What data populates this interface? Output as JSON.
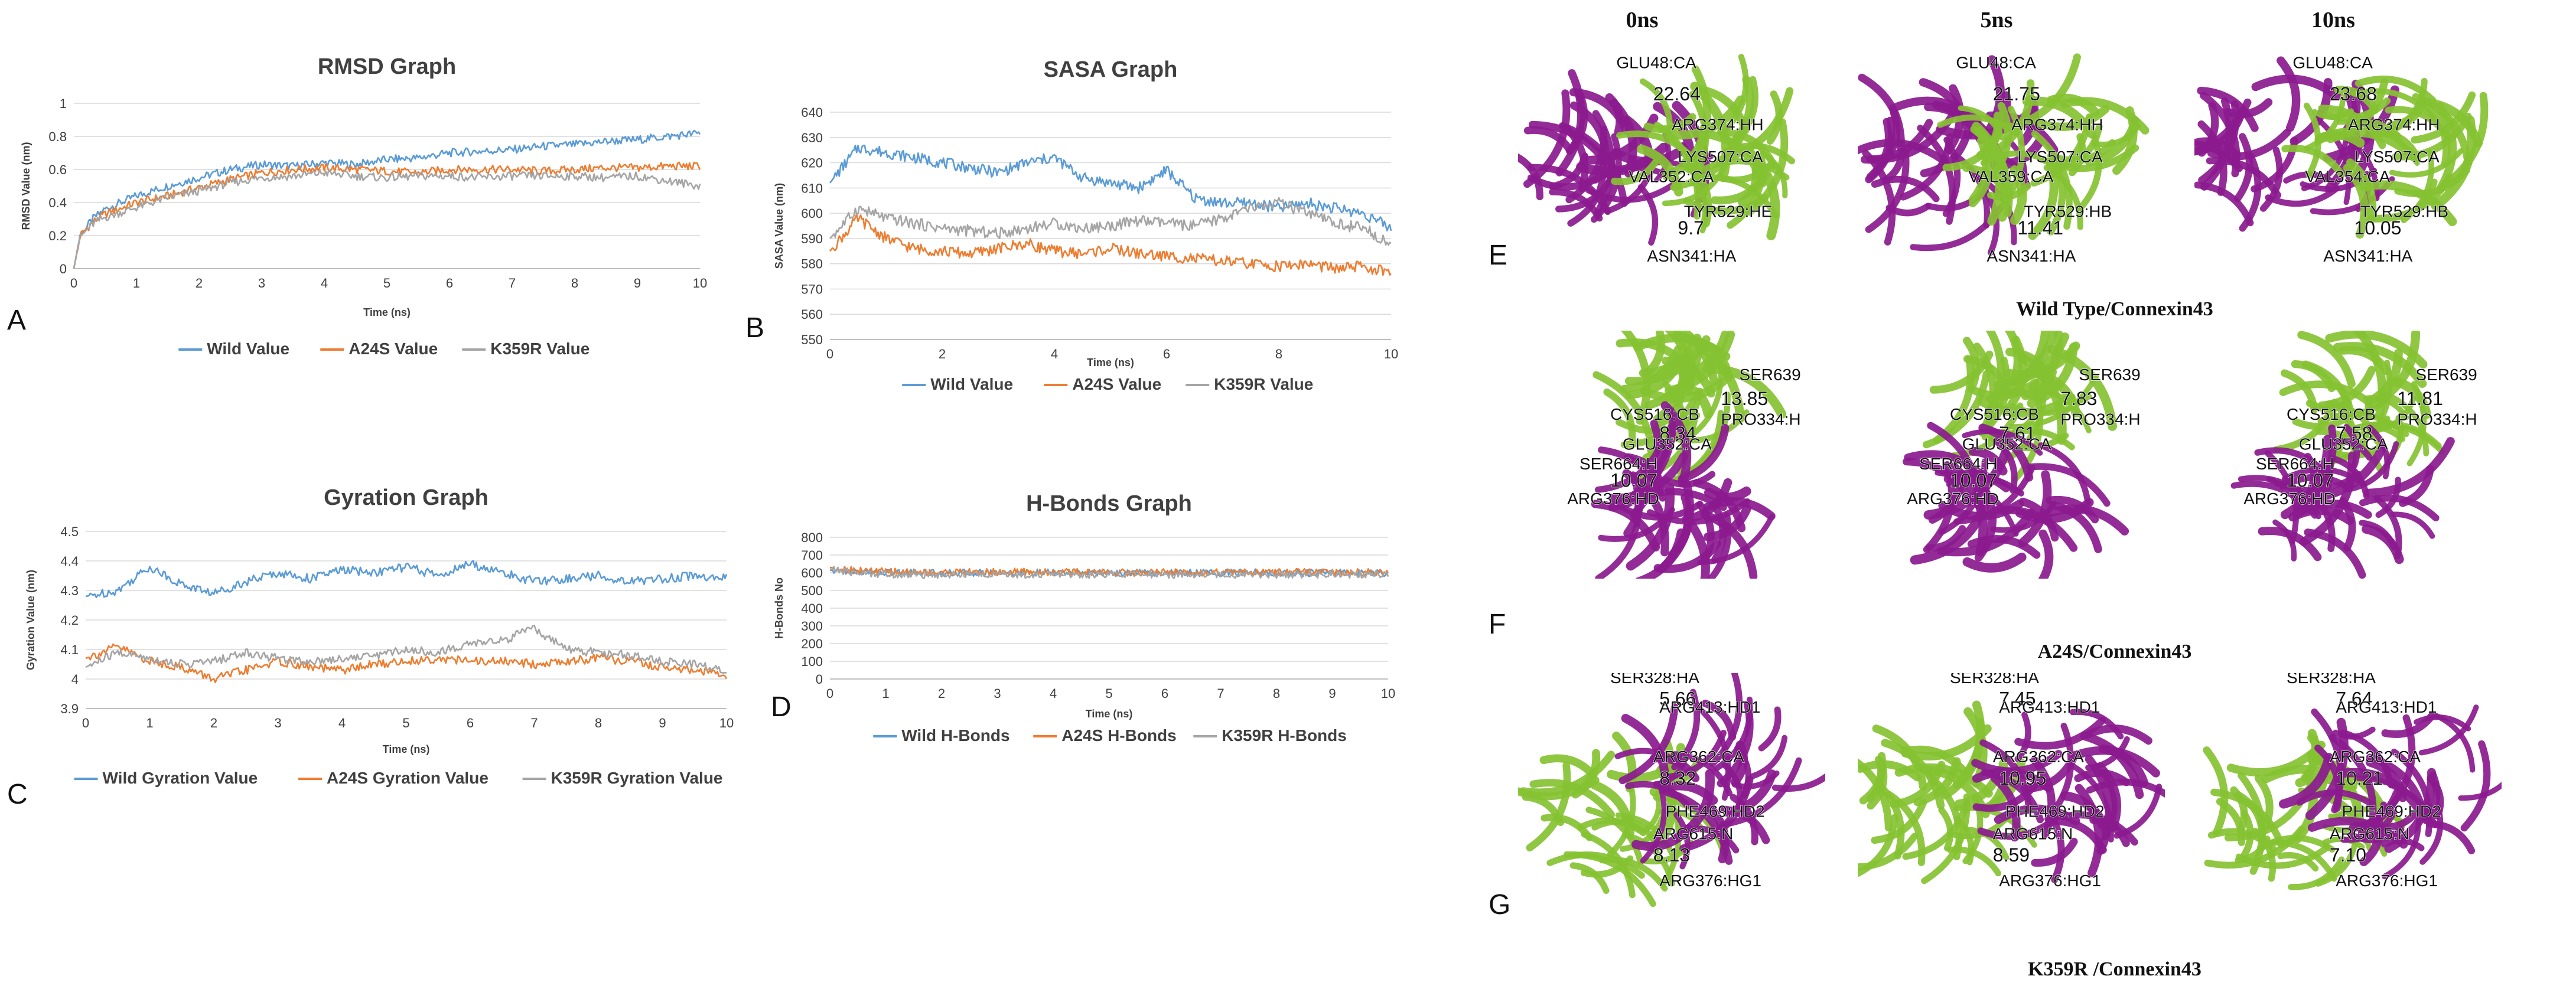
{
  "colors": {
    "wild": "#5b9bd5",
    "a24s": "#ed7d31",
    "k359r": "#a5a5a5",
    "magenta": "#8b1a8f",
    "green": "#86c232"
  },
  "panel_letters": {
    "A": "A",
    "B": "B",
    "C": "C",
    "D": "D",
    "E": "E",
    "F": "F",
    "G": "G"
  },
  "structures": {
    "column_headers": [
      "0ns",
      "5ns",
      "10ns"
    ],
    "row_captions": [
      "Wild Type/Connexin43",
      "A24S/Connexin43",
      "K359R /Connexin43"
    ],
    "rows": [
      {
        "label": "E",
        "frames": [
          [
            "GLU48:CA",
            "22.64",
            "ARG374:HH",
            "LYS507:CA",
            "VAL352:CA",
            "TYR529:HE",
            "9.7",
            "ASN341:HA"
          ],
          [
            "GLU48:CA",
            "21.75",
            "ARG374:HH",
            "LYS507:CA",
            "VAL359:CA",
            "TYR529:HB",
            "11.41",
            "ASN341:HA"
          ],
          [
            "GLU48:CA",
            "23.68",
            "ARG374:HH",
            "LYS507:CA",
            "VAL354:CA",
            "TYR529:HB",
            "10.05",
            "ASN341:HA"
          ]
        ]
      },
      {
        "label": "F",
        "frames": [
          [
            "SER639",
            "CYS516:CB",
            "8.34",
            "13.85",
            "GLU352:CA",
            "PRO334:H",
            "SER664:H",
            "10.07",
            "ARG376:HD"
          ],
          [
            "SER639",
            "CYS516:CB",
            "7.61",
            "7.83",
            "GLU352:CA",
            "PRO334:H",
            "SER664:H",
            "10.07",
            "ARG376:HD"
          ],
          [
            "SER639",
            "CYS516:CB",
            "7.58",
            "11.81",
            "GLU352:CA",
            "PRO334:H",
            "SER664:H",
            "10.07",
            "ARG376:HD"
          ]
        ]
      },
      {
        "label": "G",
        "frames": [
          [
            "SER328:HA",
            "5.66",
            "ARG413:HD1",
            "ARG362:CA",
            "8.32",
            "PHE469:HD2",
            "ARG615:N",
            "8.13",
            "ARG376:HG1"
          ],
          [
            "SER328:HA",
            "7.45",
            "ARG413:HD1",
            "ARG362:CA",
            "10.95",
            "PHE469:HD2",
            "ARG615:N",
            "8.59",
            "ARG376:HG1"
          ],
          [
            "SER328:HA",
            "7.64",
            "ARG413:HD1",
            "ARG362:CA",
            "10.21",
            "PHE469:HD2",
            "ARG615:N",
            "7.10",
            "ARG376:HG1"
          ]
        ]
      }
    ]
  },
  "chart_data": [
    {
      "id": "rmsd",
      "type": "line",
      "title": "RMSD Graph",
      "xlabel": "Time (ns)",
      "ylabel": "RMSD Value (nm)",
      "xlim": [
        0,
        10
      ],
      "ylim": [
        0,
        1
      ],
      "xticks": [
        "0",
        "1",
        "2",
        "3",
        "4",
        "5",
        "6",
        "7",
        "8",
        "9",
        "10"
      ],
      "yticks": [
        "0",
        "0.2",
        "0.4",
        "0.6",
        "0.8",
        "1"
      ],
      "legend": "bottom",
      "series": [
        {
          "name": "Wild Value",
          "color": "#5b9bd5",
          "x": [
            0,
            0.1,
            0.3,
            0.5,
            1,
            1.5,
            2,
            2.5,
            3,
            3.5,
            4,
            4.5,
            5,
            5.5,
            6,
            6.5,
            7,
            7.5,
            8,
            8.5,
            9,
            9.5,
            10
          ],
          "y": [
            0,
            0.2,
            0.3,
            0.36,
            0.44,
            0.5,
            0.55,
            0.6,
            0.63,
            0.62,
            0.64,
            0.63,
            0.66,
            0.67,
            0.7,
            0.71,
            0.72,
            0.74,
            0.75,
            0.77,
            0.78,
            0.8,
            0.82
          ]
        },
        {
          "name": "A24S Value",
          "color": "#ed7d31",
          "x": [
            0,
            0.1,
            0.3,
            0.5,
            1,
            1.5,
            2,
            2.5,
            3,
            3.5,
            4,
            4.5,
            5,
            5.5,
            6,
            6.5,
            7,
            7.5,
            8,
            8.5,
            9,
            9.5,
            10
          ],
          "y": [
            0,
            0.2,
            0.28,
            0.33,
            0.4,
            0.44,
            0.49,
            0.54,
            0.58,
            0.6,
            0.61,
            0.6,
            0.59,
            0.58,
            0.6,
            0.6,
            0.6,
            0.59,
            0.6,
            0.61,
            0.61,
            0.62,
            0.62
          ]
        },
        {
          "name": "K359R Value",
          "color": "#a5a5a5",
          "x": [
            0,
            0.1,
            0.3,
            0.5,
            1,
            1.5,
            2,
            2.5,
            3,
            3.5,
            4,
            4.5,
            5,
            5.5,
            6,
            6.5,
            7,
            7.5,
            8,
            8.5,
            9,
            9.5,
            10
          ],
          "y": [
            0,
            0.19,
            0.27,
            0.31,
            0.37,
            0.43,
            0.47,
            0.52,
            0.55,
            0.56,
            0.58,
            0.56,
            0.55,
            0.56,
            0.56,
            0.55,
            0.56,
            0.56,
            0.56,
            0.55,
            0.56,
            0.53,
            0.5
          ]
        }
      ]
    },
    {
      "id": "sasa",
      "type": "line",
      "title": "SASA Graph",
      "xlabel": "Time (ns)",
      "ylabel": "SASA Value (nm)",
      "xlim": [
        0,
        10
      ],
      "ylim": [
        550,
        640
      ],
      "xticks": [
        "0",
        "2",
        "4",
        "6",
        "8",
        "10"
      ],
      "yticks": [
        "550",
        "560",
        "570",
        "580",
        "590",
        "600",
        "610",
        "620",
        "630",
        "640"
      ],
      "legend": "bottom",
      "series": [
        {
          "name": "Wild Value",
          "color": "#5b9bd5",
          "x": [
            0,
            0.5,
            1,
            1.5,
            2,
            2.5,
            3,
            3.5,
            4,
            4.5,
            5,
            5.5,
            6,
            6.5,
            7,
            7.5,
            8,
            8.5,
            9,
            9.5,
            10
          ],
          "y": [
            612,
            626,
            624,
            622,
            620,
            618,
            616,
            620,
            622,
            614,
            612,
            610,
            617,
            606,
            604,
            604,
            602,
            604,
            602,
            600,
            594
          ]
        },
        {
          "name": "A24S Value",
          "color": "#ed7d31",
          "x": [
            0,
            0.5,
            1,
            1.5,
            2,
            2.5,
            3,
            3.5,
            4,
            4.5,
            5,
            5.5,
            6,
            6.5,
            7,
            7.5,
            8,
            8.5,
            9,
            9.5,
            10
          ],
          "y": [
            585,
            598,
            590,
            586,
            585,
            584,
            586,
            588,
            585,
            584,
            586,
            584,
            583,
            582,
            581,
            580,
            579,
            580,
            578,
            579,
            576
          ]
        },
        {
          "name": "K359R Value",
          "color": "#a5a5a5",
          "x": [
            0,
            0.5,
            1,
            1.5,
            2,
            2.5,
            3,
            3.5,
            4,
            4.5,
            5,
            5.5,
            6,
            6.5,
            7,
            7.5,
            8,
            8.5,
            9,
            9.5,
            10
          ],
          "y": [
            590,
            602,
            598,
            596,
            594,
            593,
            592,
            594,
            596,
            594,
            595,
            597,
            596,
            595,
            598,
            602,
            604,
            600,
            596,
            594,
            588
          ]
        }
      ]
    },
    {
      "id": "gyration",
      "type": "line",
      "title": "Gyration Graph",
      "xlabel": "Time (ns)",
      "ylabel": "Gyration Value (nm)",
      "xlim": [
        0,
        10
      ],
      "ylim": [
        3.9,
        4.5
      ],
      "xticks": [
        "0",
        "1",
        "2",
        "3",
        "4",
        "5",
        "6",
        "7",
        "8",
        "9",
        "10"
      ],
      "yticks": [
        "3.9",
        "4",
        "4.1",
        "4.2",
        "4.3",
        "4.4",
        "4.5"
      ],
      "legend": "bottom",
      "series": [
        {
          "name": "Wild Gyration Value",
          "color": "#5b9bd5",
          "x": [
            0,
            0.5,
            1,
            1.5,
            2,
            2.5,
            3,
            3.5,
            4,
            4.5,
            5,
            5.5,
            6,
            6.5,
            7,
            7.5,
            8,
            8.5,
            9,
            9.5,
            10
          ],
          "y": [
            4.28,
            4.3,
            4.38,
            4.32,
            4.29,
            4.33,
            4.36,
            4.34,
            4.37,
            4.36,
            4.38,
            4.35,
            4.39,
            4.36,
            4.33,
            4.34,
            4.35,
            4.33,
            4.34,
            4.35,
            4.34
          ]
        },
        {
          "name": "A24S Gyration Value",
          "color": "#ed7d31",
          "x": [
            0,
            0.5,
            1,
            1.5,
            2,
            2.5,
            3,
            3.5,
            4,
            4.5,
            5,
            5.5,
            6,
            6.5,
            7,
            7.5,
            8,
            8.5,
            9,
            9.5,
            10
          ],
          "y": [
            4.07,
            4.11,
            4.06,
            4.04,
            4.0,
            4.03,
            4.06,
            4.04,
            4.03,
            4.05,
            4.06,
            4.07,
            4.06,
            4.06,
            4.05,
            4.06,
            4.07,
            4.06,
            4.04,
            4.03,
            4.01
          ]
        },
        {
          "name": "K359R Gyration Value",
          "color": "#a5a5a5",
          "x": [
            0,
            0.5,
            1,
            1.5,
            2,
            2.5,
            3,
            3.5,
            4,
            4.5,
            5,
            5.5,
            6,
            6.5,
            7,
            7.5,
            8,
            8.5,
            9,
            9.5,
            10
          ],
          "y": [
            4.04,
            4.09,
            4.07,
            4.05,
            4.06,
            4.09,
            4.07,
            4.06,
            4.07,
            4.08,
            4.1,
            4.09,
            4.12,
            4.13,
            4.17,
            4.1,
            4.09,
            4.08,
            4.06,
            4.05,
            4.03
          ]
        }
      ]
    },
    {
      "id": "hbonds",
      "type": "line",
      "title": "H-Bonds Graph",
      "xlabel": "Time (ns)",
      "ylabel": "H-Bonds No",
      "xlim": [
        0,
        10
      ],
      "ylim": [
        0,
        800
      ],
      "xticks": [
        "0",
        "1",
        "2",
        "3",
        "4",
        "5",
        "6",
        "7",
        "8",
        "9",
        "10"
      ],
      "yticks": [
        "0",
        "100",
        "200",
        "300",
        "400",
        "500",
        "600",
        "700",
        "800"
      ],
      "legend": "bottom",
      "series": [
        {
          "name": "Wild H-Bonds",
          "color": "#5b9bd5",
          "x": [
            0,
            0.5,
            1,
            1.5,
            2,
            2.5,
            3,
            3.5,
            4,
            4.5,
            5,
            5.5,
            6,
            6.5,
            7,
            7.5,
            8,
            8.5,
            9,
            9.5,
            10
          ],
          "y": [
            615,
            606,
            600,
            602,
            598,
            600,
            601,
            599,
            600,
            602,
            598,
            600,
            601,
            599,
            600,
            601,
            600,
            599,
            600,
            601,
            600
          ]
        },
        {
          "name": "A24S H-Bonds",
          "color": "#ed7d31",
          "x": [
            0,
            0.5,
            1,
            1.5,
            2,
            2.5,
            3,
            3.5,
            4,
            4.5,
            5,
            5.5,
            6,
            6.5,
            7,
            7.5,
            8,
            8.5,
            9,
            9.5,
            10
          ],
          "y": [
            630,
            612,
            606,
            604,
            602,
            604,
            603,
            605,
            602,
            604,
            603,
            601,
            604,
            602,
            603,
            600,
            602,
            603,
            601,
            602,
            603
          ]
        },
        {
          "name": "K359R H-Bonds",
          "color": "#a5a5a5",
          "x": [
            0,
            0.5,
            1,
            1.5,
            2,
            2.5,
            3,
            3.5,
            4,
            4.5,
            5,
            5.5,
            6,
            6.5,
            7,
            7.5,
            8,
            8.5,
            9,
            9.5,
            10
          ],
          "y": [
            620,
            598,
            592,
            590,
            588,
            592,
            590,
            589,
            591,
            588,
            590,
            592,
            589,
            591,
            590,
            588,
            590,
            591,
            589,
            590,
            591
          ]
        }
      ]
    }
  ]
}
